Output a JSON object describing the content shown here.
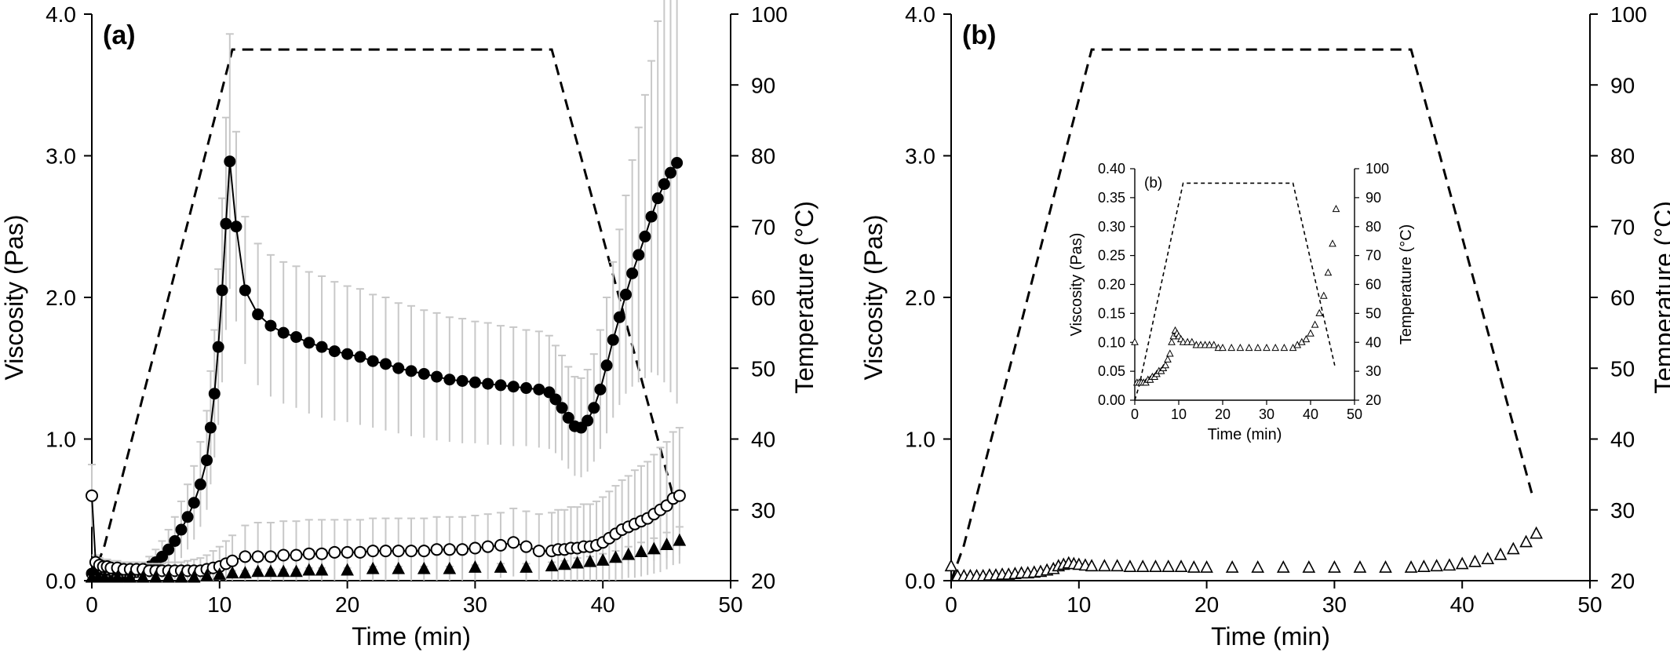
{
  "chart_data": [
    {
      "type": "line",
      "panel_label": "(a)",
      "xlabel": "Time (min)",
      "ylabel": "Viscosity (Pas)",
      "y2label": "Temperature (°C)",
      "xlim": [
        0,
        50
      ],
      "ylim": [
        0,
        4
      ],
      "y2lim": [
        20,
        100
      ],
      "xticks": [
        "0",
        "10",
        "20",
        "30",
        "40",
        "50"
      ],
      "yticks": [
        "0.0",
        "1.0",
        "2.0",
        "3.0",
        "4.0"
      ],
      "y2ticks": [
        "20",
        "30",
        "40",
        "50",
        "60",
        "70",
        "80",
        "90",
        "100"
      ],
      "grid": false,
      "temperature": {
        "x": [
          0,
          1,
          11,
          36,
          45.5
        ],
        "y": [
          20,
          25,
          95,
          95,
          32
        ]
      },
      "series": [
        {
          "marker": "filled-circle",
          "x": [
            0,
            0.5,
            1,
            1.5,
            2,
            2.5,
            3,
            3.5,
            4,
            4.5,
            5,
            5.5,
            6,
            6.5,
            7,
            7.5,
            8,
            8.5,
            9,
            9.3,
            9.6,
            9.9,
            10.2,
            10.5,
            10.8,
            11.3,
            12,
            13,
            14,
            15,
            16,
            17,
            18,
            19,
            20,
            21,
            22,
            23,
            24,
            25,
            26,
            27,
            28,
            29,
            30,
            31,
            32,
            33,
            34,
            35,
            35.8,
            36.3,
            36.8,
            37.3,
            37.8,
            38.3,
            38.8,
            39.3,
            39.8,
            40.3,
            40.8,
            41.3,
            41.8,
            42.3,
            42.8,
            43.3,
            43.8,
            44.3,
            44.8,
            45.3,
            45.8
          ],
          "y": [
            0.05,
            0.04,
            0.03,
            0.03,
            0.03,
            0.03,
            0.04,
            0.06,
            0.08,
            0.1,
            0.13,
            0.17,
            0.22,
            0.28,
            0.36,
            0.45,
            0.55,
            0.68,
            0.85,
            1.08,
            1.32,
            1.65,
            2.05,
            2.52,
            2.96,
            2.5,
            2.05,
            1.88,
            1.8,
            1.75,
            1.72,
            1.68,
            1.65,
            1.62,
            1.6,
            1.58,
            1.55,
            1.53,
            1.5,
            1.48,
            1.46,
            1.44,
            1.42,
            1.41,
            1.4,
            1.39,
            1.38,
            1.37,
            1.36,
            1.35,
            1.33,
            1.28,
            1.22,
            1.15,
            1.09,
            1.08,
            1.13,
            1.22,
            1.35,
            1.52,
            1.7,
            1.86,
            2.02,
            2.17,
            2.3,
            2.43,
            2.57,
            2.7,
            2.8,
            2.88,
            2.95
          ],
          "error": [
            0.02,
            0.02,
            0.02,
            0.02,
            0.02,
            0.02,
            0.02,
            0.03,
            0.05,
            0.07,
            0.09,
            0.11,
            0.14,
            0.17,
            0.2,
            0.23,
            0.26,
            0.3,
            0.35,
            0.4,
            0.45,
            0.55,
            0.65,
            0.75,
            0.9,
            0.67,
            0.52,
            0.5,
            0.5,
            0.5,
            0.5,
            0.5,
            0.5,
            0.49,
            0.48,
            0.48,
            0.47,
            0.47,
            0.46,
            0.46,
            0.45,
            0.45,
            0.44,
            0.44,
            0.43,
            0.43,
            0.42,
            0.42,
            0.41,
            0.41,
            0.4,
            0.38,
            0.37,
            0.36,
            0.35,
            0.35,
            0.36,
            0.38,
            0.42,
            0.48,
            0.55,
            0.62,
            0.7,
            0.8,
            0.9,
            1.0,
            1.1,
            1.25,
            1.4,
            1.55,
            1.7
          ]
        },
        {
          "marker": "open-circle",
          "x": [
            0,
            0.3,
            0.6,
            0.9,
            1.2,
            1.5,
            2,
            2.5,
            3,
            3.5,
            4,
            4.5,
            5,
            5.5,
            6,
            6.5,
            7,
            7.5,
            8,
            8.5,
            9,
            9.5,
            10,
            10.5,
            11,
            12,
            13,
            14,
            15,
            16,
            17,
            18,
            19,
            20,
            21,
            22,
            23,
            24,
            25,
            26,
            27,
            28,
            29,
            30,
            31,
            32,
            33,
            34,
            35,
            36,
            36.5,
            37,
            37.5,
            38,
            38.5,
            39,
            39.5,
            40,
            40.5,
            41,
            41.5,
            42,
            42.5,
            43,
            43.5,
            44,
            44.5,
            45,
            45.5,
            46
          ],
          "y": [
            0.6,
            0.13,
            0.11,
            0.1,
            0.1,
            0.09,
            0.09,
            0.08,
            0.08,
            0.08,
            0.08,
            0.07,
            0.07,
            0.07,
            0.07,
            0.07,
            0.07,
            0.07,
            0.07,
            0.07,
            0.08,
            0.09,
            0.1,
            0.12,
            0.14,
            0.17,
            0.17,
            0.17,
            0.18,
            0.18,
            0.19,
            0.19,
            0.2,
            0.2,
            0.2,
            0.21,
            0.21,
            0.21,
            0.21,
            0.21,
            0.22,
            0.22,
            0.22,
            0.23,
            0.24,
            0.25,
            0.27,
            0.24,
            0.21,
            0.21,
            0.22,
            0.22,
            0.23,
            0.23,
            0.24,
            0.24,
            0.25,
            0.27,
            0.3,
            0.33,
            0.36,
            0.38,
            0.4,
            0.42,
            0.44,
            0.47,
            0.5,
            0.53,
            0.58,
            0.6
          ],
          "error": [
            0.22,
            0.05,
            0.05,
            0.05,
            0.05,
            0.05,
            0.05,
            0.05,
            0.05,
            0.05,
            0.05,
            0.05,
            0.05,
            0.05,
            0.06,
            0.06,
            0.06,
            0.07,
            0.08,
            0.09,
            0.1,
            0.12,
            0.14,
            0.16,
            0.18,
            0.22,
            0.24,
            0.24,
            0.24,
            0.24,
            0.24,
            0.24,
            0.23,
            0.23,
            0.23,
            0.23,
            0.23,
            0.23,
            0.23,
            0.23,
            0.23,
            0.23,
            0.23,
            0.23,
            0.23,
            0.23,
            0.24,
            0.25,
            0.26,
            0.27,
            0.28,
            0.28,
            0.29,
            0.29,
            0.3,
            0.3,
            0.31,
            0.32,
            0.33,
            0.34,
            0.35,
            0.36,
            0.38,
            0.39,
            0.4,
            0.42,
            0.44,
            0.45,
            0.47,
            0.48
          ]
        },
        {
          "marker": "filled-triangle",
          "x": [
            0,
            0.5,
            1,
            2,
            3,
            4,
            5,
            6,
            7,
            8,
            9,
            10,
            11,
            12,
            13,
            14,
            15,
            16,
            17,
            18,
            20,
            22,
            24,
            26,
            28,
            30,
            32,
            34,
            36,
            37,
            38,
            39,
            40,
            41,
            42,
            43,
            44,
            45,
            46
          ],
          "y": [
            0.02,
            0.02,
            0.02,
            0.02,
            0.02,
            0.02,
            0.02,
            0.02,
            0.02,
            0.02,
            0.03,
            0.04,
            0.05,
            0.05,
            0.06,
            0.06,
            0.06,
            0.06,
            0.07,
            0.07,
            0.07,
            0.08,
            0.08,
            0.08,
            0.08,
            0.09,
            0.09,
            0.09,
            0.1,
            0.11,
            0.12,
            0.13,
            0.14,
            0.16,
            0.18,
            0.2,
            0.22,
            0.25,
            0.28
          ],
          "error": [
            0.01,
            0.01,
            0.01,
            0.01,
            0.01,
            0.01,
            0.01,
            0.01,
            0.01,
            0.01,
            0.01,
            0.01,
            0.02,
            0.02,
            0.02,
            0.02,
            0.02,
            0.02,
            0.02,
            0.02,
            0.02,
            0.02,
            0.02,
            0.02,
            0.02,
            0.02,
            0.03,
            0.03,
            0.03,
            0.03,
            0.04,
            0.04,
            0.05,
            0.05,
            0.06,
            0.07,
            0.08,
            0.09,
            0.1
          ]
        }
      ]
    },
    {
      "type": "scatter",
      "panel_label": "(b)",
      "xlabel": "Time (min)",
      "ylabel": "Viscosity (Pas)",
      "y2label": "Temperature (°C)",
      "xlim": [
        0,
        50
      ],
      "ylim": [
        0,
        4
      ],
      "y2lim": [
        20,
        100
      ],
      "xticks": [
        "0",
        "10",
        "20",
        "30",
        "40",
        "50"
      ],
      "yticks": [
        "0.0",
        "1.0",
        "2.0",
        "3.0",
        "4.0"
      ],
      "y2ticks": [
        "20",
        "30",
        "40",
        "50",
        "60",
        "70",
        "80",
        "90",
        "100"
      ],
      "grid": false,
      "temperature": {
        "x": [
          0,
          1,
          11,
          36,
          45.5
        ],
        "y": [
          20,
          25,
          95,
          95,
          32
        ]
      },
      "series": [
        {
          "marker": "open-triangle",
          "x": [
            0,
            0.5,
            1,
            1.5,
            2,
            2.5,
            3,
            3.5,
            4,
            4.5,
            5,
            5.5,
            6,
            6.5,
            7,
            7.5,
            8,
            8.4,
            8.8,
            9.2,
            9.6,
            10,
            10.5,
            11,
            12,
            13,
            14,
            15,
            16,
            17,
            18,
            19,
            20,
            22,
            24,
            26,
            28,
            30,
            32,
            34,
            36,
            37,
            38,
            39,
            40,
            41,
            42,
            43,
            44,
            45,
            45.8
          ],
          "y": [
            0.1,
            0.03,
            0.03,
            0.03,
            0.03,
            0.03,
            0.035,
            0.035,
            0.04,
            0.04,
            0.045,
            0.05,
            0.05,
            0.055,
            0.06,
            0.07,
            0.08,
            0.1,
            0.11,
            0.12,
            0.115,
            0.11,
            0.105,
            0.1,
            0.1,
            0.1,
            0.095,
            0.095,
            0.095,
            0.095,
            0.095,
            0.09,
            0.09,
            0.09,
            0.09,
            0.09,
            0.09,
            0.09,
            0.09,
            0.09,
            0.09,
            0.095,
            0.1,
            0.105,
            0.115,
            0.13,
            0.15,
            0.18,
            0.22,
            0.27,
            0.33
          ]
        }
      ]
    },
    {
      "type": "scatter",
      "panel_label": "(b)",
      "xlabel": "Time (min)",
      "ylabel": "Viscosity (Pas)",
      "y2label": "Temperature (°C)",
      "xlim": [
        0,
        50
      ],
      "ylim": [
        0,
        0.4
      ],
      "y2lim": [
        20,
        100
      ],
      "xticks": [
        "0",
        "10",
        "20",
        "30",
        "40",
        "50"
      ],
      "yticks": [
        "0.00",
        "0.05",
        "0.10",
        "0.15",
        "0.20",
        "0.25",
        "0.30",
        "0.35",
        "0.40"
      ],
      "y2ticks": [
        "20",
        "30",
        "40",
        "50",
        "60",
        "70",
        "80",
        "90",
        "100"
      ],
      "grid": false,
      "temperature": {
        "x": [
          0,
          1,
          11,
          36,
          45.5
        ],
        "y": [
          20,
          25,
          95,
          95,
          32
        ]
      },
      "series": [
        {
          "marker": "open-triangle",
          "x": [
            0,
            0.5,
            1,
            1.5,
            2,
            2.5,
            3,
            3.5,
            4,
            4.5,
            5,
            5.5,
            6,
            6.5,
            7,
            7.5,
            8,
            8.4,
            8.8,
            9.2,
            9.6,
            10,
            10.5,
            11,
            12,
            13,
            14,
            15,
            16,
            17,
            18,
            19,
            20,
            22,
            24,
            26,
            28,
            30,
            32,
            34,
            36,
            37,
            38,
            39,
            40,
            41,
            42,
            43,
            44,
            45,
            45.8
          ],
          "y": [
            0.1,
            0.03,
            0.03,
            0.03,
            0.03,
            0.03,
            0.035,
            0.035,
            0.04,
            0.04,
            0.045,
            0.05,
            0.05,
            0.055,
            0.06,
            0.07,
            0.08,
            0.1,
            0.11,
            0.12,
            0.115,
            0.11,
            0.105,
            0.1,
            0.1,
            0.1,
            0.095,
            0.095,
            0.095,
            0.095,
            0.095,
            0.09,
            0.09,
            0.09,
            0.09,
            0.09,
            0.09,
            0.09,
            0.09,
            0.09,
            0.09,
            0.095,
            0.1,
            0.105,
            0.115,
            0.13,
            0.15,
            0.18,
            0.22,
            0.27,
            0.33
          ]
        }
      ]
    }
  ]
}
